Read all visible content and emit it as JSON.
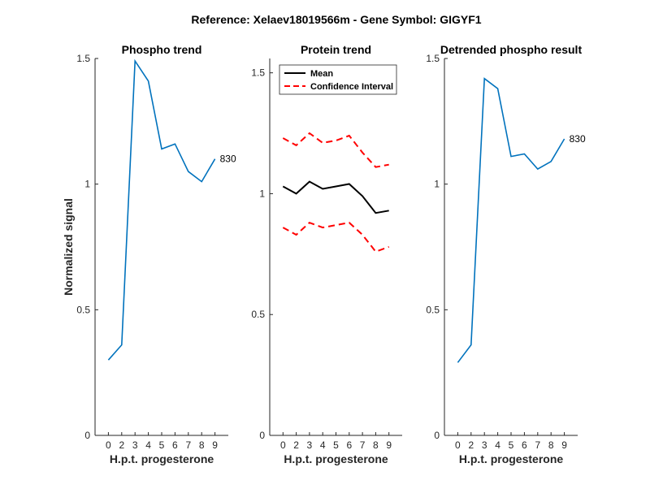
{
  "figure": {
    "suptitle": "Reference:  Xelaev18019566m - Gene Symbol:  GIGYF1"
  },
  "chart_data": [
    {
      "type": "line",
      "title": "Phospho trend",
      "xlabel": "H.p.t. progesterone",
      "ylabel": "Normalized signal",
      "x_tick_labels": [
        "0",
        "2",
        "3",
        "4",
        "5",
        "6",
        "7",
        "8",
        "9"
      ],
      "y_ticks": [
        0,
        0.5,
        1,
        1.5
      ],
      "y_tick_labels": [
        "0",
        "0.5",
        "1",
        "1.5"
      ],
      "ylim": [
        0,
        1.5
      ],
      "series": [
        {
          "values": [
            0.3,
            0.36,
            1.49,
            1.41,
            1.14,
            1.16,
            1.05,
            1.01,
            1.1
          ],
          "color": "#0072BD",
          "style": "solid"
        }
      ],
      "annotation": {
        "text": "830",
        "at_index": 8
      },
      "grid": false
    },
    {
      "type": "line",
      "title": "Protein trend",
      "xlabel": "H.p.t. progesterone",
      "ylabel": "",
      "x_tick_labels": [
        "0",
        "2",
        "3",
        "4",
        "5",
        "6",
        "7",
        "8",
        "9"
      ],
      "y_ticks": [
        0,
        0.5,
        1,
        1.5
      ],
      "y_tick_labels": [
        "0",
        "0.5",
        "1",
        "1.5"
      ],
      "ylim": [
        0,
        1.5
      ],
      "legend_placement": "top-left",
      "legend": [
        {
          "label": "Mean",
          "color": "#000000",
          "style": "solid"
        },
        {
          "label": "Confidence Interval",
          "color": "#FF0000",
          "style": "dashed"
        }
      ],
      "series": [
        {
          "values": [
            1.03,
            1.0,
            1.05,
            1.02,
            1.03,
            1.04,
            0.99,
            0.92,
            0.93
          ],
          "color": "#000000",
          "style": "solid"
        },
        {
          "values": [
            1.23,
            1.2,
            1.25,
            1.21,
            1.22,
            1.24,
            1.17,
            1.11,
            1.12
          ],
          "color": "#FF0000",
          "style": "dashed"
        },
        {
          "values": [
            0.86,
            0.83,
            0.88,
            0.86,
            0.87,
            0.88,
            0.83,
            0.76,
            0.78
          ],
          "color": "#FF0000",
          "style": "dashed"
        }
      ],
      "grid": false
    },
    {
      "type": "line",
      "title": "Detrended phospho result",
      "xlabel": "H.p.t. progesterone",
      "ylabel": "",
      "x_tick_labels": [
        "0",
        "2",
        "3",
        "4",
        "5",
        "6",
        "7",
        "8",
        "9"
      ],
      "y_ticks": [
        0,
        0.5,
        1,
        1.5
      ],
      "y_tick_labels": [
        "0",
        "0.5",
        "1",
        "1.5"
      ],
      "ylim": [
        0,
        1.5
      ],
      "series": [
        {
          "values": [
            0.29,
            0.36,
            1.42,
            1.38,
            1.11,
            1.12,
            1.06,
            1.09,
            1.18
          ],
          "color": "#0072BD",
          "style": "solid"
        }
      ],
      "annotation": {
        "text": "830",
        "at_index": 8
      },
      "grid": false
    }
  ]
}
